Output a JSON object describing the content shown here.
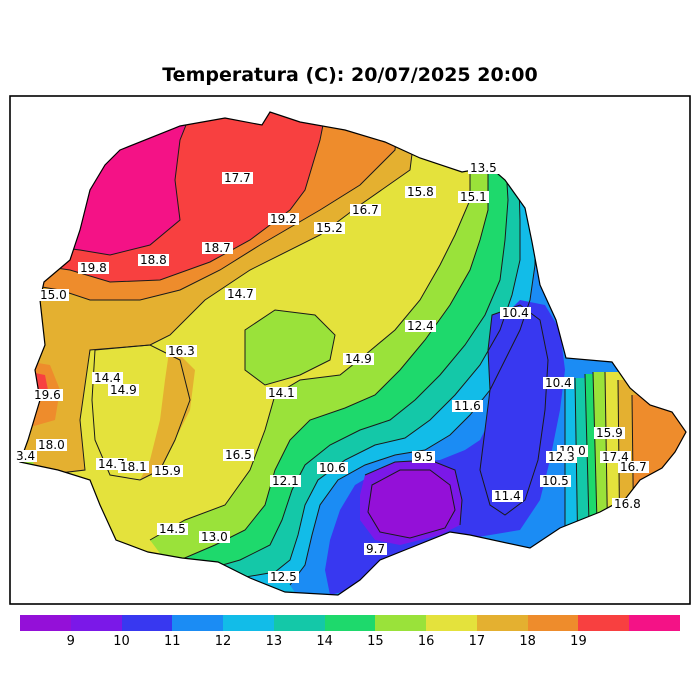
{
  "title": "Temperatura (C): 20/07/2025 20:00",
  "legend": {
    "colors": [
      "#9410d8",
      "#7b18e8",
      "#3838f0",
      "#1b8cf4",
      "#12bce8",
      "#14c8a8",
      "#1ed96c",
      "#9ae23a",
      "#e4e23c",
      "#e4b030",
      "#ee8c2c",
      "#f84040",
      "#f41286"
    ],
    "ticks": [
      "9",
      "10",
      "11",
      "12",
      "13",
      "14",
      "15",
      "16",
      "17",
      "18",
      "19"
    ]
  },
  "map_colors": {
    "c8": "#9410d8",
    "c9": "#7b18e8",
    "c10": "#3838f0",
    "c11": "#1b8cf4",
    "c12": "#12bce8",
    "c13": "#14c8a8",
    "c14": "#1ed96c",
    "c15": "#9ae23a",
    "c16": "#e4e23c",
    "c17": "#e4b030",
    "c18": "#ee8c2c",
    "c19": "#f84040",
    "c20": "#f41286"
  },
  "stations": [
    {
      "label": "17.7"
    },
    {
      "label": "19.2"
    },
    {
      "label": "16.7"
    },
    {
      "label": "15.8"
    },
    {
      "label": "13.5"
    },
    {
      "label": "15.1"
    },
    {
      "label": "15.2"
    },
    {
      "label": "18.8"
    },
    {
      "label": "18.7"
    },
    {
      "label": "19.8"
    },
    {
      "label": "15.0"
    },
    {
      "label": "14.7"
    },
    {
      "label": "12.4"
    },
    {
      "label": "10.4"
    },
    {
      "label": "16.3"
    },
    {
      "label": "14.9"
    },
    {
      "label": "14.4"
    },
    {
      "label": "14.9"
    },
    {
      "label": "19.6"
    },
    {
      "label": "14.1"
    },
    {
      "label": "10.4"
    },
    {
      "label": "11.6"
    },
    {
      "label": "15.9"
    },
    {
      "label": "18.0"
    },
    {
      "label": "3.4"
    },
    {
      "label": "16.5"
    },
    {
      "label": "14.7"
    },
    {
      "label": "18.1"
    },
    {
      "label": "15.9"
    },
    {
      "label": "10.6"
    },
    {
      "label": "9.5"
    },
    {
      "label": "10.0"
    },
    {
      "label": "12.3"
    },
    {
      "label": "17.4"
    },
    {
      "label": "16.7"
    },
    {
      "label": "12.1"
    },
    {
      "label": "10.5"
    },
    {
      "label": "11.4"
    },
    {
      "label": "16.8"
    },
    {
      "label": "14.5"
    },
    {
      "label": "13.0"
    },
    {
      "label": "9.7"
    },
    {
      "label": "12.5"
    }
  ]
}
